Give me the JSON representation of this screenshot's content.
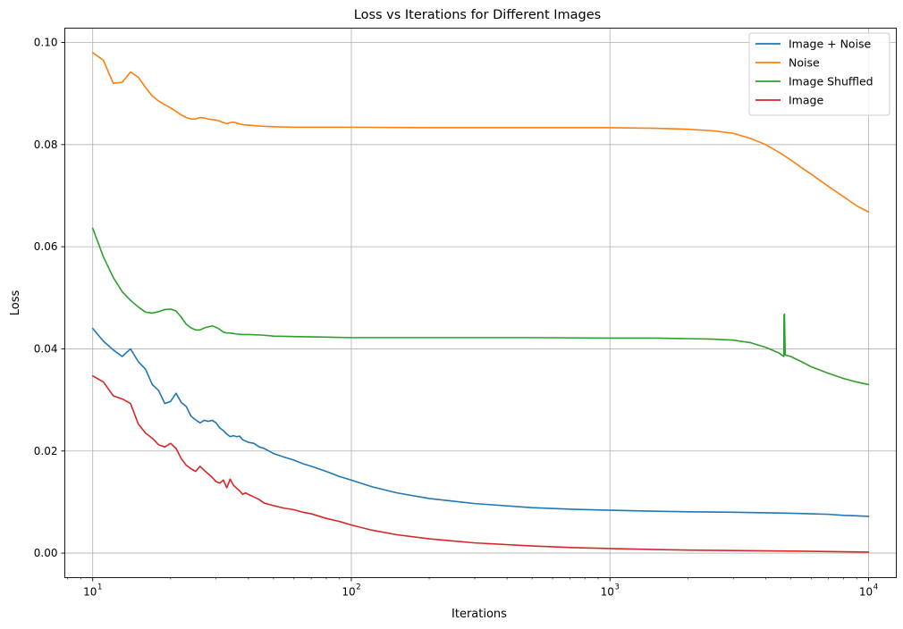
{
  "chart_data": {
    "type": "line",
    "title": "Loss vs Iterations for Different Images",
    "xlabel": "Iterations",
    "ylabel": "Loss",
    "x_scale": "log",
    "xlim": [
      7.8,
      12800
    ],
    "ylim": [
      -0.0048,
      0.1028
    ],
    "x_ticks": [
      10,
      100,
      1000,
      10000
    ],
    "x_tick_labels": [
      {
        "base": "10",
        "exp": "1"
      },
      {
        "base": "10",
        "exp": "2"
      },
      {
        "base": "10",
        "exp": "3"
      },
      {
        "base": "10",
        "exp": "4"
      }
    ],
    "y_ticks": [
      0,
      0.02,
      0.04,
      0.06,
      0.08,
      0.1
    ],
    "y_tick_labels": [
      "0.00",
      "0.02",
      "0.04",
      "0.06",
      "0.08",
      "0.10"
    ],
    "grid": true,
    "legend_position": "top-right",
    "series": [
      {
        "name": "Image + Noise",
        "color": "#1f77b4",
        "x": [
          10,
          11,
          12,
          13,
          14,
          15,
          16,
          17,
          18,
          19,
          20,
          21,
          22,
          23,
          24,
          25,
          26,
          27,
          28,
          29,
          30,
          31,
          32,
          33,
          34,
          35,
          36,
          37,
          38,
          40,
          42,
          44,
          46,
          50,
          55,
          60,
          65,
          70,
          80,
          90,
          100,
          120,
          150,
          200,
          300,
          500,
          700,
          1000,
          1500,
          2000,
          3000,
          4000,
          5000,
          6000,
          7000,
          8000,
          9000,
          10000
        ],
        "y": [
          0.044,
          0.0415,
          0.0398,
          0.0385,
          0.04,
          0.0375,
          0.036,
          0.033,
          0.0318,
          0.0293,
          0.0297,
          0.0313,
          0.0295,
          0.0287,
          0.0268,
          0.0261,
          0.0255,
          0.026,
          0.0258,
          0.026,
          0.0255,
          0.0245,
          0.024,
          0.0233,
          0.0228,
          0.023,
          0.0228,
          0.0229,
          0.0222,
          0.0217,
          0.0215,
          0.0208,
          0.0205,
          0.0195,
          0.0188,
          0.0182,
          0.0175,
          0.017,
          0.016,
          0.015,
          0.0143,
          0.013,
          0.0118,
          0.0107,
          0.0097,
          0.0089,
          0.0086,
          0.0084,
          0.0082,
          0.0081,
          0.008,
          0.0079,
          0.0078,
          0.0077,
          0.0076,
          0.0074,
          0.0073,
          0.0072
        ]
      },
      {
        "name": "Noise",
        "color": "#ff7f0e",
        "x": [
          10,
          11,
          12,
          13,
          14,
          15,
          16,
          17,
          18,
          19,
          20,
          21,
          22,
          23,
          24,
          25,
          26,
          27,
          28,
          29,
          30,
          31,
          32,
          33,
          34,
          35,
          36,
          38,
          40,
          45,
          50,
          60,
          70,
          100,
          200,
          500,
          1000,
          1500,
          2000,
          2500,
          3000,
          3500,
          4000,
          4500,
          5000,
          5500,
          6000,
          7000,
          8000,
          9000,
          10000
        ],
        "y": [
          0.098,
          0.0965,
          0.092,
          0.0922,
          0.0942,
          0.0932,
          0.0912,
          0.0895,
          0.0885,
          0.0878,
          0.0872,
          0.0865,
          0.0858,
          0.0853,
          0.085,
          0.085,
          0.0853,
          0.0852,
          0.085,
          0.0849,
          0.0848,
          0.0846,
          0.0843,
          0.0841,
          0.0843,
          0.0844,
          0.0842,
          0.0839,
          0.0838,
          0.0836,
          0.0835,
          0.0834,
          0.0834,
          0.0834,
          0.0833,
          0.0833,
          0.0833,
          0.0832,
          0.083,
          0.0827,
          0.0822,
          0.0812,
          0.08,
          0.0785,
          0.077,
          0.0755,
          0.0742,
          0.0718,
          0.0698,
          0.068,
          0.0668
        ]
      },
      {
        "name": "Image Shuffled",
        "color": "#2ca02c",
        "x": [
          10,
          11,
          12,
          13,
          14,
          15,
          16,
          17,
          18,
          19,
          20,
          21,
          22,
          23,
          24,
          25,
          26,
          27,
          28,
          29,
          30,
          31,
          32,
          33,
          34,
          35,
          36,
          38,
          40,
          45,
          50,
          60,
          80,
          100,
          200,
          500,
          1000,
          1500,
          2000,
          2500,
          3000,
          3500,
          4000,
          4500,
          4700,
          4710,
          4730,
          4760,
          5000,
          5500,
          6000,
          7000,
          8000,
          9000,
          10000
        ],
        "y": [
          0.0636,
          0.058,
          0.054,
          0.0512,
          0.0495,
          0.0482,
          0.0472,
          0.047,
          0.0473,
          0.0477,
          0.0478,
          0.0474,
          0.0462,
          0.0448,
          0.0441,
          0.0437,
          0.0437,
          0.0441,
          0.0443,
          0.0445,
          0.0442,
          0.0438,
          0.0433,
          0.0431,
          0.0431,
          0.043,
          0.0429,
          0.0428,
          0.0428,
          0.0427,
          0.0425,
          0.0424,
          0.0423,
          0.0422,
          0.0422,
          0.0422,
          0.0421,
          0.0421,
          0.042,
          0.0419,
          0.0417,
          0.0412,
          0.0403,
          0.0392,
          0.0385,
          0.0466,
          0.0468,
          0.0388,
          0.0385,
          0.0375,
          0.0365,
          0.0352,
          0.0342,
          0.0335,
          0.033
        ]
      },
      {
        "name": "Image",
        "color": "#d62728",
        "x": [
          10,
          11,
          12,
          13,
          14,
          15,
          16,
          17,
          18,
          19,
          20,
          21,
          22,
          23,
          24,
          25,
          26,
          27,
          28,
          29,
          30,
          31,
          32,
          33,
          34,
          35,
          36,
          37,
          38,
          39,
          40,
          42,
          44,
          46,
          50,
          55,
          60,
          65,
          70,
          80,
          90,
          100,
          120,
          150,
          200,
          300,
          500,
          700,
          1000,
          1500,
          2000,
          3000,
          5000,
          7000,
          10000
        ],
        "y": [
          0.0347,
          0.0335,
          0.0308,
          0.0302,
          0.0293,
          0.0253,
          0.0235,
          0.0225,
          0.0212,
          0.0208,
          0.0215,
          0.0205,
          0.0185,
          0.0172,
          0.0165,
          0.016,
          0.017,
          0.0162,
          0.0155,
          0.0148,
          0.014,
          0.0137,
          0.0143,
          0.0128,
          0.0145,
          0.0133,
          0.0127,
          0.0122,
          0.0115,
          0.0118,
          0.0115,
          0.011,
          0.0105,
          0.0098,
          0.0093,
          0.0088,
          0.0085,
          0.008,
          0.0077,
          0.0068,
          0.0062,
          0.0055,
          0.0045,
          0.0036,
          0.0028,
          0.002,
          0.0014,
          0.0011,
          0.0009,
          0.0007,
          0.0006,
          0.0005,
          0.0004,
          0.0003,
          0.0002
        ]
      }
    ]
  }
}
